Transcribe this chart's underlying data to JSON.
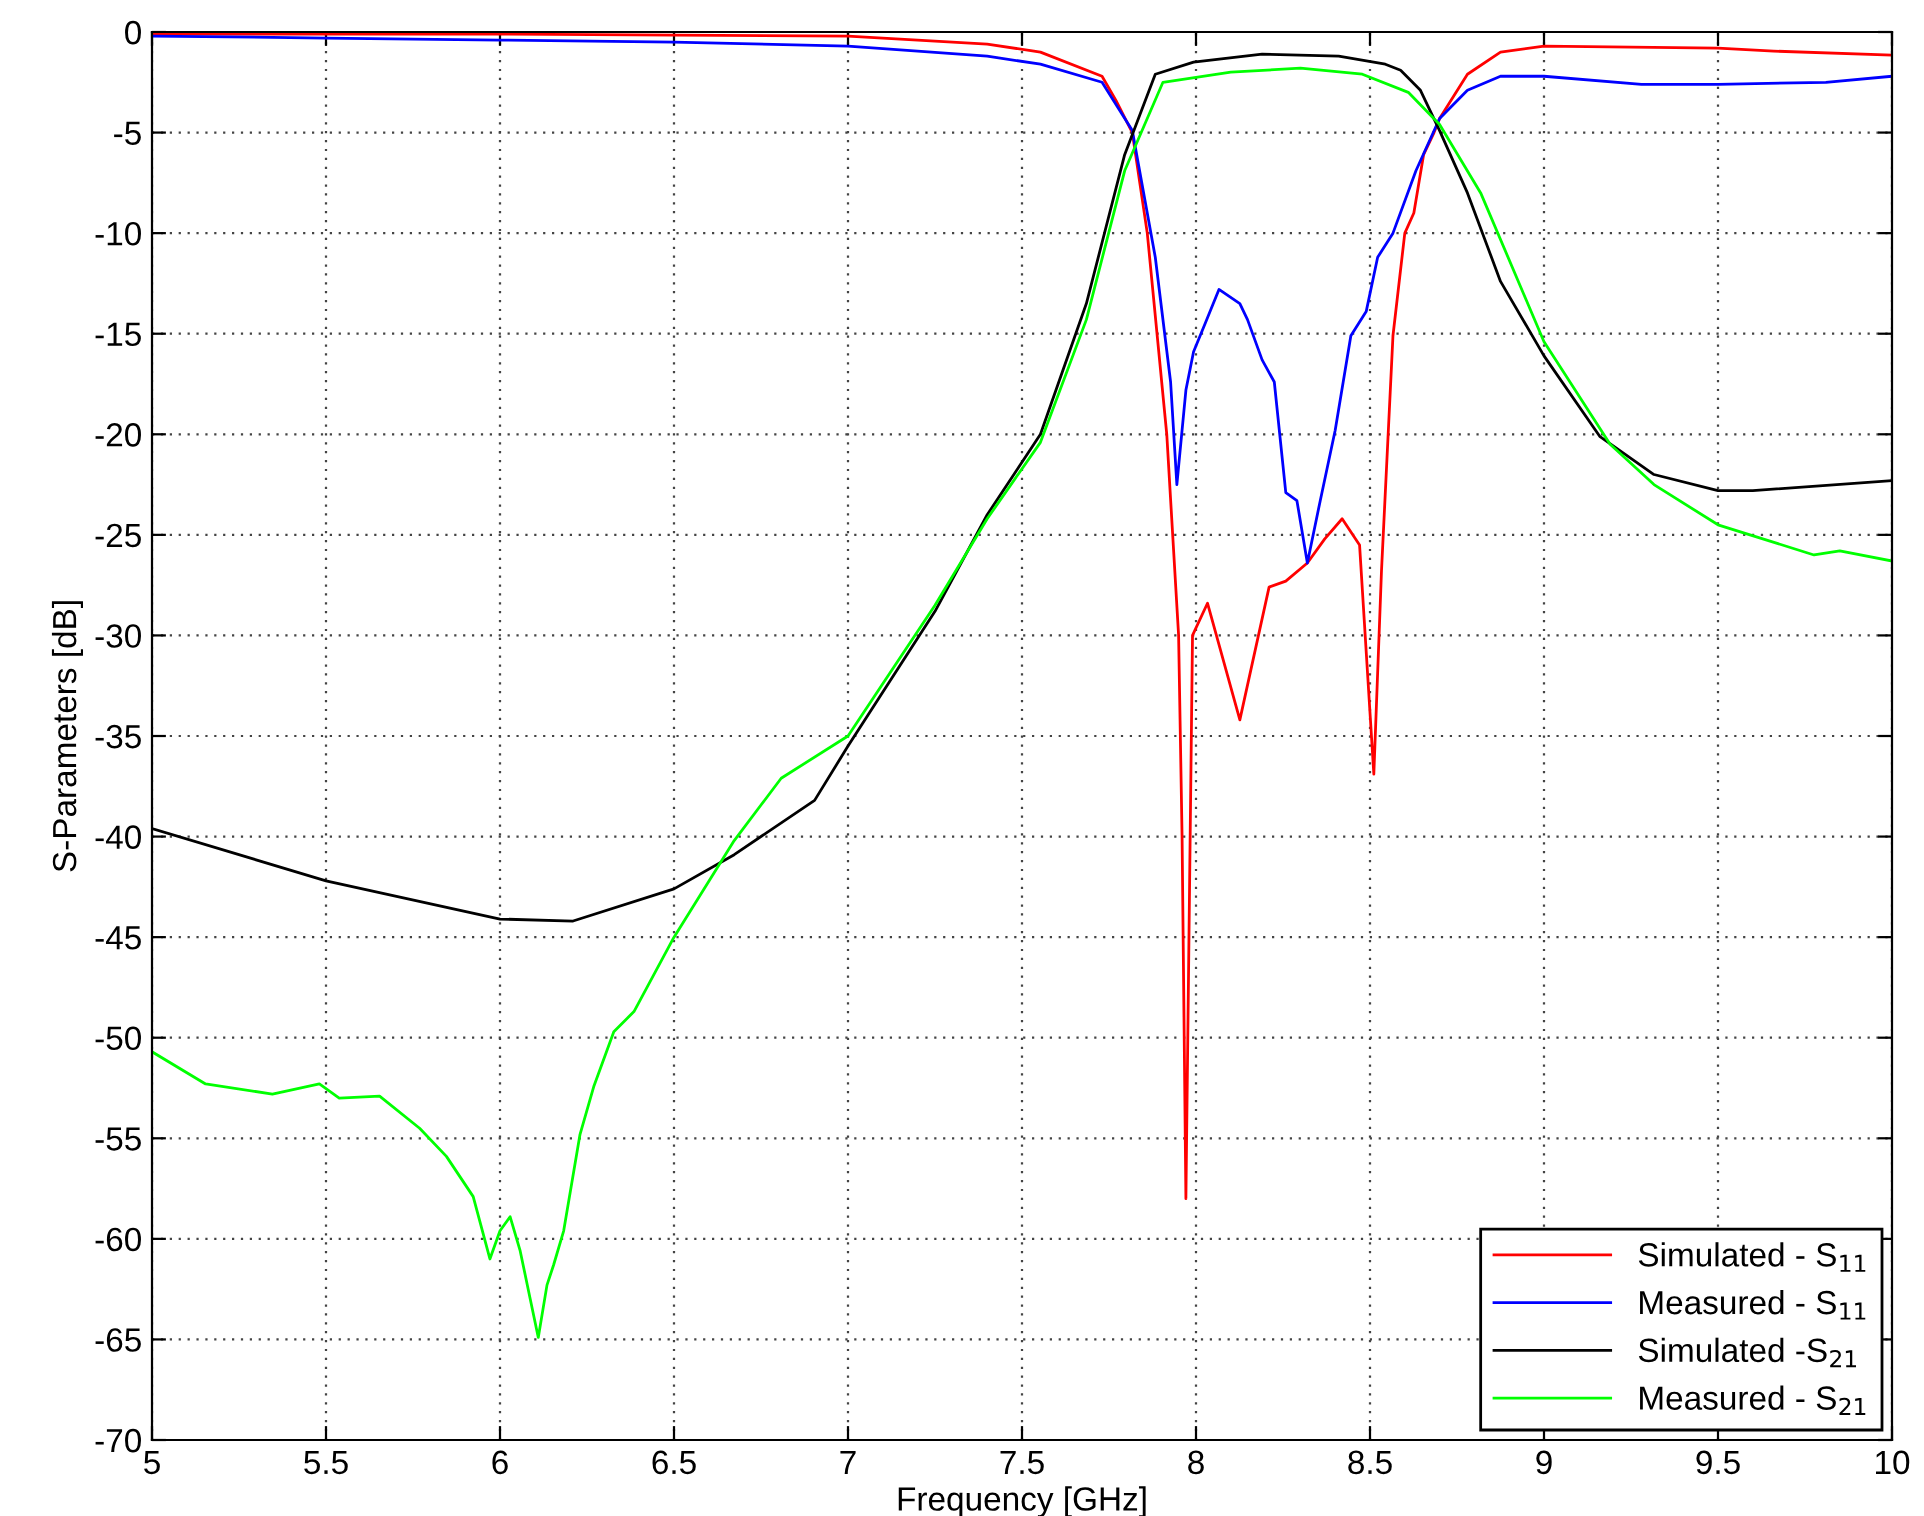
{
  "chart_data": {
    "type": "line",
    "xlabel": "Frequency [GHz]",
    "ylabel": "S-Parameters [dB]",
    "xlim": [
      5,
      10
    ],
    "ylim": [
      -70,
      0
    ],
    "xticks": [
      5,
      5.5,
      6,
      6.5,
      7,
      7.5,
      8,
      8.5,
      9,
      9.5,
      10
    ],
    "yticks": [
      0,
      -5,
      -10,
      -15,
      -20,
      -25,
      -30,
      -35,
      -40,
      -45,
      -50,
      -55,
      -60,
      -65,
      -70
    ],
    "grid": true,
    "legend": "bottom right",
    "line_style": "solid",
    "marker": "none",
    "series": [
      {
        "name": "Simulated - S$_{11}$",
        "color": "#ff0000",
        "x": [
          5,
          5.5,
          6,
          6.5,
          7,
          7.4,
          7.553,
          7.73,
          7.77,
          7.817,
          7.86,
          7.916,
          7.95,
          7.96,
          7.971,
          7.99,
          8.033,
          8.126,
          8.21,
          8.258,
          8.32,
          8.37,
          8.42,
          8.47,
          8.511,
          8.533,
          8.566,
          8.6,
          8.626,
          8.654,
          8.684,
          8.7,
          8.78,
          8.875,
          9,
          9.5,
          9.66,
          10
        ],
        "values": [
          -0.1,
          -0.1,
          -0.1,
          -0.15,
          -0.2,
          -0.6,
          -1.0,
          -2.2,
          -3.4,
          -5,
          -10,
          -20,
          -30,
          -40,
          -58,
          -30,
          -28.4,
          -34.2,
          -27.6,
          -27.3,
          -26.4,
          -25.2,
          -24.2,
          -25.5,
          -36.9,
          -26.8,
          -15.1,
          -10,
          -9,
          -6.1,
          -5,
          -4.3,
          -2.1,
          -1.0,
          -0.7,
          -0.8,
          -0.95,
          -1.15
        ]
      },
      {
        "name": "Measured - S$_{11}$",
        "color": "#0000ff",
        "x": [
          5,
          5.5,
          6,
          6.5,
          7,
          7.4,
          7.553,
          7.73,
          7.817,
          7.883,
          7.927,
          7.945,
          7.971,
          7.993,
          8.026,
          8.066,
          8.126,
          8.148,
          8.19,
          8.225,
          8.258,
          8.29,
          8.32,
          8.357,
          8.4,
          8.445,
          8.489,
          8.522,
          8.566,
          8.632,
          8.7,
          8.78,
          8.875,
          9,
          9.28,
          9.5,
          9.81,
          10
        ],
        "values": [
          -0.2,
          -0.3,
          -0.4,
          -0.5,
          -0.7,
          -1.2,
          -1.6,
          -2.5,
          -4.9,
          -11.2,
          -17.4,
          -22.5,
          -17.8,
          -15.9,
          -14.5,
          -12.8,
          -13.5,
          -14.3,
          -16.3,
          -17.4,
          -22.9,
          -23.3,
          -26.4,
          -23.3,
          -19.8,
          -15.1,
          -13.9,
          -11.2,
          -10.0,
          -6.9,
          -4.3,
          -2.9,
          -2.2,
          -2.2,
          -2.6,
          -2.6,
          -2.5,
          -2.2
        ]
      },
      {
        "name": "Simulated -S$_{21}$",
        "color": "#000000",
        "x": [
          5,
          5.5,
          6,
          6.21,
          6.5,
          6.673,
          6.904,
          7,
          7.25,
          7.4,
          7.553,
          7.685,
          7.795,
          7.883,
          7.993,
          8.19,
          8.41,
          8.544,
          8.588,
          8.645,
          8.7,
          8.78,
          8.875,
          9,
          9.16,
          9.316,
          9.5,
          9.6,
          10
        ],
        "values": [
          -39.6,
          -42.2,
          -44.1,
          -44.2,
          -42.6,
          -40.9,
          -38.2,
          -35.5,
          -28.8,
          -24,
          -20,
          -13.5,
          -6.1,
          -2.1,
          -1.5,
          -1.1,
          -1.2,
          -1.6,
          -1.9,
          -2.9,
          -4.9,
          -8,
          -12.4,
          -16.1,
          -20.1,
          -22.0,
          -22.8,
          -22.8,
          -22.3
        ]
      },
      {
        "name": "Measured - S$_{21}$",
        "color": "#00ff00",
        "x": [
          5,
          5.154,
          5.346,
          5.481,
          5.538,
          5.654,
          5.769,
          5.846,
          5.923,
          5.971,
          6,
          6.029,
          6.058,
          6.087,
          6.11,
          6.135,
          6.154,
          6.183,
          6.23,
          6.27,
          6.327,
          6.385,
          6.5,
          6.673,
          6.808,
          7,
          7.25,
          7.4,
          7.553,
          7.685,
          7.795,
          7.905,
          8.1,
          8.3,
          8.478,
          8.61,
          8.7,
          8.818,
          9,
          9.19,
          9.316,
          9.5,
          9.776,
          9.85,
          10
        ],
        "values": [
          -50.7,
          -52.3,
          -52.8,
          -52.3,
          -53.0,
          -52.9,
          -54.5,
          -55.9,
          -57.9,
          -61.0,
          -59.6,
          -58.9,
          -60.6,
          -63.0,
          -64.9,
          -62.3,
          -61.3,
          -59.6,
          -54.8,
          -52.4,
          -49.7,
          -48.7,
          -45,
          -40.2,
          -37.1,
          -35,
          -28.5,
          -24.2,
          -20.4,
          -14.3,
          -6.9,
          -2.5,
          -2.0,
          -1.8,
          -2.1,
          -3.0,
          -4.6,
          -8,
          -15.4,
          -20.5,
          -22.5,
          -24.5,
          -26.0,
          -25.8,
          -26.3
        ]
      }
    ]
  }
}
